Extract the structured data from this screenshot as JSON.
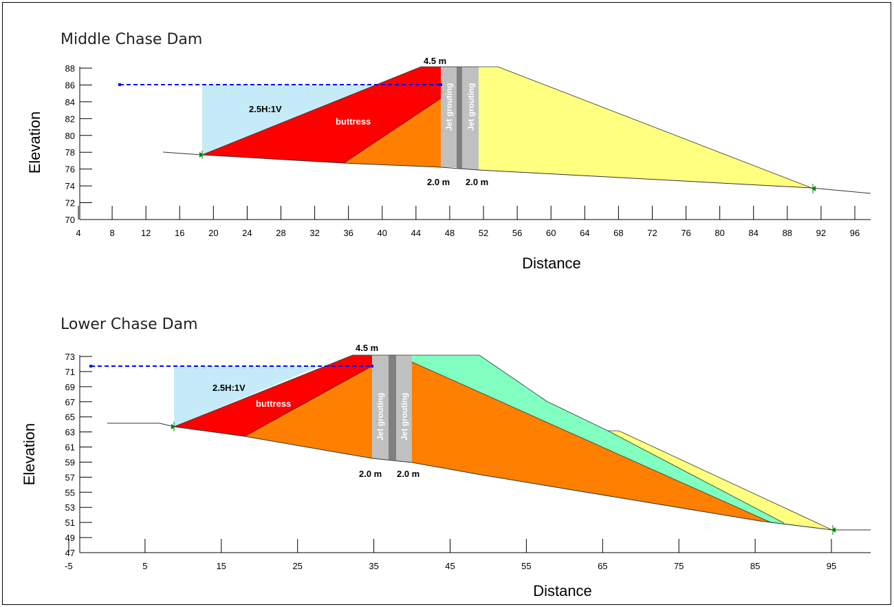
{
  "panels": [
    {
      "title": "Middle Chase Dam",
      "xlabel": "Distance",
      "ylabel": "Elevation",
      "xticks": [
        "4",
        "8",
        "12",
        "16",
        "20",
        "24",
        "28",
        "32",
        "36",
        "40",
        "44",
        "48",
        "52",
        "56",
        "60",
        "64",
        "68",
        "72",
        "76",
        "80",
        "84",
        "88",
        "92",
        "96"
      ],
      "yticks": [
        "70",
        "72",
        "74",
        "76",
        "78",
        "80",
        "82",
        "84",
        "86",
        "88"
      ],
      "annotations": {
        "crest_width": "4.5 m",
        "slope": "2.5H:1V",
        "buttress": "buttress",
        "grout_left": "Jet grouting",
        "grout_right": "Jet grouting",
        "grout_w_left": "2.0 m",
        "grout_w_right": "2.0 m"
      }
    },
    {
      "title": "Lower Chase Dam",
      "xlabel": "Distance",
      "ylabel": "Elevation",
      "xticks": [
        "-5",
        "5",
        "15",
        "25",
        "35",
        "45",
        "55",
        "65",
        "75",
        "85",
        "95"
      ],
      "yticks": [
        "47",
        "49",
        "51",
        "53",
        "55",
        "57",
        "59",
        "61",
        "63",
        "65",
        "67",
        "69",
        "71",
        "73"
      ],
      "annotations": {
        "crest_width": "4.5 m",
        "slope": "2.5H:1V",
        "buttress": "buttress",
        "grout_left": "Jet grouting",
        "grout_right": "Jet grouting",
        "grout_w_left": "2.0 m",
        "grout_w_right": "2.0 m"
      }
    }
  ],
  "colors": {
    "water": "#c5ebf9",
    "buttress": "#ff0000",
    "core": "#ff8000",
    "shell": "#ffff80",
    "filter": "#80ffc0",
    "grout_light": "#c0c0c0",
    "grout_dark": "#808080",
    "water_line": "#0000ff",
    "marker": "#008000"
  }
}
